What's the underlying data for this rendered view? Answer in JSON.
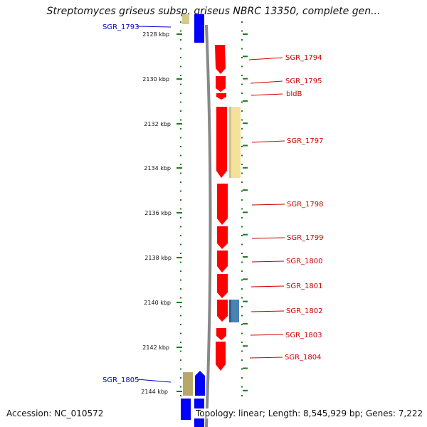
{
  "header": {
    "title": "Streptomyces griseus subsp. griseus NBRC 13350, complete gen..."
  },
  "footer": {
    "accession": "Accession: NC_010572",
    "topology": "Topology: linear; Length: 8,545,929 bp; Genes: 7,222"
  },
  "colors": {
    "forward": "#ff0000",
    "reverse": "#0000ff",
    "tan": "#c8b870",
    "pale_yellow": "#f4e29a",
    "steel_blue": "#4a82b4",
    "ticks": "#1f7a1f",
    "backbone": "#888888"
  },
  "axis": {
    "unit": "kbp",
    "kbp_labels": [
      "2128 kbp",
      "2130 kbp",
      "2132 kbp",
      "2134 kbp",
      "2136 kbp",
      "2138 kbp",
      "2140 kbp",
      "2142 kbp",
      "2144 kbp"
    ]
  },
  "left_labels": [
    {
      "label": "SGR_1793",
      "color": "#0000cc"
    },
    {
      "label": "SGR_1805",
      "color": "#0000cc"
    }
  ],
  "right_labels": [
    {
      "label": "SGR_1794",
      "color": "#cc0000"
    },
    {
      "label": "SGR_1795",
      "color": "#cc0000"
    },
    {
      "label": "bldB",
      "color": "#cc0000"
    },
    {
      "label": "SGR_1797",
      "color": "#cc0000"
    },
    {
      "label": "SGR_1798",
      "color": "#cc0000"
    },
    {
      "label": "SGR_1799",
      "color": "#cc0000"
    },
    {
      "label": "SGR_1800",
      "color": "#cc0000"
    },
    {
      "label": "SGR_1801",
      "color": "#cc0000"
    },
    {
      "label": "SGR_1802",
      "color": "#cc0000"
    },
    {
      "label": "SGR_1803",
      "color": "#cc0000"
    },
    {
      "label": "SGR_1804",
      "color": "#cc0000"
    }
  ]
}
